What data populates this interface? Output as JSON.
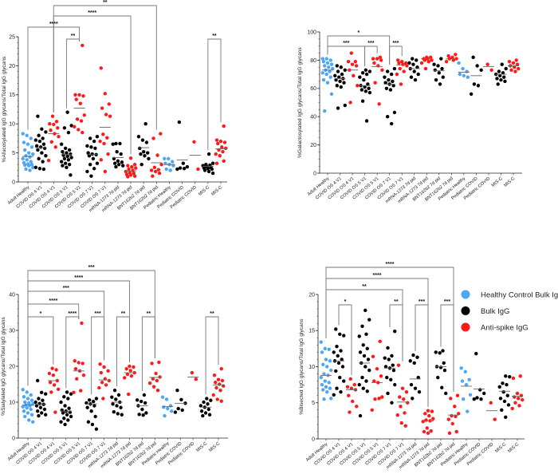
{
  "colors": {
    "healthy": "#4ea6f7",
    "bulk": "#000000",
    "spike": "#ff1a1a",
    "median": "#666666",
    "bracket": "#777777"
  },
  "categories": [
    "Adult Healthy",
    "COVID OS 4 V1",
    "COVID OS 4 V1",
    "COVID OS 5 V1",
    "COVID OS 5 V1",
    "COVID OS 7 V1",
    "COVID OS 7 V1",
    "mRNA-1273 7d pid",
    "mRNA-1273 7d pid",
    "BNT162b2 7d pid",
    "BNT162b2 7d pid",
    "Pediatric Healthy",
    "Pediatric COVID",
    "Pediatric COVID",
    "MIS-C",
    "MIS-C"
  ],
  "group_types": [
    "healthy",
    "bulk",
    "spike",
    "bulk",
    "spike",
    "bulk",
    "spike",
    "bulk",
    "spike",
    "bulk",
    "spike",
    "healthy",
    "bulk",
    "spike",
    "bulk",
    "spike"
  ],
  "legend": [
    {
      "label": "Healthy Control Bulk IgG",
      "type": "healthy"
    },
    {
      "label": "Bulk IgG",
      "type": "bulk"
    },
    {
      "label": "Anti-spike IgG",
      "type": "spike"
    }
  ],
  "chart_data": [
    {
      "type": "scatter",
      "ylabel": "%Afucosylated IgG glycans/Total IgG glycans",
      "ylim": [
        0,
        25
      ],
      "yticks": [
        "0",
        "5",
        "10",
        "15",
        "20",
        "25"
      ],
      "ytick_values": [
        0,
        5,
        10,
        15,
        20,
        25
      ],
      "minor_step": 1,
      "medians": [
        4.4,
        5.9,
        8.3,
        4.7,
        12.7,
        4.7,
        9.4,
        4.2,
        1.9,
        5.9,
        3.3,
        3.0,
        3.8,
        4.6,
        2.7,
        5.7
      ],
      "points": [
        [
          8.3,
          8,
          7.5,
          6.8,
          6.5,
          6,
          5.5,
          5,
          4.8,
          4.5,
          4.3,
          4,
          3.8,
          3.5,
          3.3,
          3.1,
          3,
          2.9,
          2.8,
          2.5,
          2.2,
          2
        ],
        [
          11.3,
          9.1,
          8.6,
          8,
          7.5,
          7.2,
          7,
          6.5,
          6.2,
          6,
          5.8,
          5.5,
          5,
          4.5,
          4,
          3.5,
          2.5,
          2.3,
          2.2
        ],
        [
          11.3,
          10.4,
          10,
          9.9,
          9.3,
          8.9,
          8.3,
          7.8,
          6.9,
          6,
          3.7
        ],
        [
          12,
          9.7,
          9.3,
          8.5,
          6.5,
          5.8,
          5.5,
          5.2,
          5,
          4.8,
          4.6,
          4.4,
          4.2,
          4,
          3.8,
          3.5,
          3.2,
          3,
          2.8,
          2.5,
          1.2
        ],
        [
          23.5,
          15,
          15,
          14.8,
          14.2,
          13.5,
          11.5,
          10.8,
          10.5,
          9.5,
          9,
          8.5
        ],
        [
          7.8,
          7.5,
          7,
          6.2,
          6,
          5.8,
          5,
          4.8,
          4.7,
          4.5,
          4,
          3.2,
          3,
          2.3,
          1.8,
          1
        ],
        [
          19.6,
          15.2,
          13.4,
          12.7,
          11.6,
          11.3,
          8.2,
          7.6,
          7,
          6.6,
          4.8,
          3.8,
          1.8
        ],
        [
          6.6,
          6.6,
          6.5,
          5.2,
          4.8,
          4,
          3.6,
          3.4,
          3.2,
          3,
          2.8,
          2.6
        ],
        [
          4.1,
          3,
          2.8,
          2.6,
          2.4,
          2.2,
          2,
          1.8,
          1.6,
          1.5,
          1.3,
          1.2,
          1,
          0.9
        ],
        [
          10,
          7.8,
          7.2,
          6.8,
          5.8,
          5.2,
          5,
          4.8,
          4.5,
          4,
          3
        ],
        [
          8.3,
          7.5,
          4.6,
          3,
          2.5,
          2.1,
          2,
          1.8,
          1.5,
          1
        ],
        [
          4,
          4,
          3.5,
          3.2,
          3,
          2.8,
          2.2,
          2
        ],
        [
          10.3,
          3.2,
          2.6,
          2.4,
          2.3,
          2.2
        ],
        [
          6.9,
          2.2
        ],
        [
          4.8,
          3.2,
          3,
          2.9,
          2.8,
          2.6,
          2.5,
          2.4,
          2.3,
          2.2,
          2,
          1.8,
          1.5
        ],
        [
          9.6,
          7.2,
          7,
          6.8,
          6.6,
          6,
          5.8,
          5.5,
          5.2,
          4.8,
          4.5,
          3.6,
          3.2
        ]
      ],
      "brackets": [
        {
          "from": 4,
          "to": 5,
          "label": "**",
          "tier": 0
        },
        {
          "from": 15,
          "to": 16,
          "label": "**",
          "tier": 0
        },
        {
          "from": 1,
          "to": 5,
          "label": "****",
          "tier": 1
        },
        {
          "from": 3,
          "to": 9,
          "label": "****",
          "tier": 2
        },
        {
          "from": 3,
          "to": 11,
          "label": "**",
          "tier": 3
        }
      ]
    },
    {
      "type": "scatter",
      "ylabel": "%Galactosylated IgG glycans/Total IgG glycans",
      "ylim": [
        0,
        100
      ],
      "yticks": [
        "0",
        "20",
        "40",
        "60",
        "80",
        "100"
      ],
      "ytick_values": [
        0,
        20,
        40,
        60,
        80,
        100
      ],
      "minor_step": 5,
      "medians": [
        73,
        67,
        73,
        62,
        75.5,
        63,
        76.5,
        74,
        81,
        72.5,
        81,
        71.5,
        69,
        75.5,
        70,
        76
      ],
      "points": [
        [
          81,
          81,
          80,
          79,
          78,
          77,
          76,
          75,
          74,
          73,
          72,
          71,
          70,
          68,
          66,
          64,
          56,
          44
        ],
        [
          76,
          75,
          73,
          72,
          70,
          69,
          68,
          67,
          66,
          65,
          64,
          62,
          61,
          48,
          46
        ],
        [
          85,
          79,
          79,
          77,
          76,
          73,
          69,
          62,
          50
        ],
        [
          73,
          72,
          71,
          70,
          68,
          66,
          63,
          62,
          61,
          60,
          59,
          58,
          57,
          51,
          37
        ],
        [
          82,
          81,
          81,
          80,
          78,
          76,
          73,
          64,
          49
        ],
        [
          74,
          72,
          70,
          68,
          66,
          65,
          64,
          63,
          62,
          60,
          59,
          43,
          40,
          35
        ],
        [
          80,
          79,
          78,
          78,
          77,
          76,
          74,
          72,
          70,
          63
        ],
        [
          81,
          80,
          78,
          77,
          75,
          74,
          72,
          70,
          68,
          66
        ],
        [
          82,
          82,
          81,
          81,
          80,
          80,
          79,
          78,
          74
        ],
        [
          81,
          77,
          76,
          74,
          73,
          71,
          68,
          66,
          63
        ],
        [
          84,
          83,
          82,
          81,
          81,
          80,
          79
        ],
        [
          78,
          74,
          72,
          70,
          69,
          68
        ],
        [
          82,
          76,
          73,
          63,
          62,
          56
        ],
        [
          77,
          73
        ],
        [
          77,
          74,
          72,
          71,
          70,
          69,
          68,
          67,
          66,
          65,
          63
        ],
        [
          80,
          79,
          78,
          77,
          76,
          75,
          74,
          73,
          72
        ]
      ],
      "brackets": [
        {
          "from": 1,
          "to": 4,
          "label": "***",
          "tier": 0
        },
        {
          "from": 4,
          "to": 5,
          "label": "***",
          "tier": 0
        },
        {
          "from": 6,
          "to": 7,
          "label": "***",
          "tier": 0
        },
        {
          "from": 1,
          "to": 6,
          "label": "*",
          "tier": 1
        }
      ]
    },
    {
      "type": "scatter",
      "ylabel": "%Sialylated IgG glycans/Total IgG glycans",
      "ylim": [
        0,
        40
      ],
      "yticks": [
        "0",
        "10",
        "20",
        "30",
        "40"
      ],
      "ytick_values": [
        0,
        10,
        20,
        30,
        40
      ],
      "minor_step": 2,
      "medians": [
        9.2,
        9.4,
        16,
        7.5,
        18.7,
        9.5,
        16.2,
        10,
        18.2,
        9,
        16.9,
        8.8,
        9.7,
        17,
        8.6,
        14.8
      ],
      "points": [
        [
          13.5,
          12.8,
          12,
          11.5,
          11,
          10.5,
          10,
          9.8,
          9.5,
          9.2,
          9,
          8.7,
          8.4,
          8,
          7.5,
          7,
          6.5,
          6,
          5,
          4.5
        ],
        [
          16,
          12.7,
          12.3,
          11,
          10.5,
          10,
          9.6,
          9.4,
          9,
          8.5,
          8,
          7.5,
          7,
          6.5,
          6.2
        ],
        [
          19.4,
          19,
          18,
          17.5,
          16,
          15.5,
          14.8,
          13.6,
          12.8,
          7.2
        ],
        [
          12.8,
          12.3,
          11.5,
          11,
          10,
          9,
          8.3,
          7.8,
          7.5,
          7.2,
          7,
          6.5,
          6,
          5.5,
          5,
          4.5,
          3.8
        ],
        [
          32,
          21.5,
          21,
          20.8,
          19.3,
          18.7,
          17.5,
          16.5,
          13.2,
          12.7
        ],
        [
          11,
          10.6,
          10.2,
          9.8,
          9.5,
          9,
          8.5,
          7.5,
          6,
          4.5,
          3.8,
          2.5
        ],
        [
          20.6,
          19.8,
          18.7,
          18.2,
          16.5,
          16,
          15.5,
          14.8,
          14,
          11
        ],
        [
          13.3,
          12,
          11.4,
          10.8,
          10,
          9.5,
          9,
          8.5,
          7.3,
          6.8,
          6.5
        ],
        [
          20,
          19.8,
          19.3,
          18.8,
          18.2,
          17.8,
          17.3,
          16.8,
          12.2
        ],
        [
          12,
          10.6,
          10.2,
          9.8,
          9,
          8,
          7,
          6.6,
          6.4
        ],
        [
          21.1,
          20.8,
          18,
          17,
          16.5,
          16,
          15.3,
          14.3,
          13.3
        ],
        [
          11.4,
          10.8,
          9,
          8.6,
          8.2,
          7.5,
          6.2
        ],
        [
          13.3,
          10.7,
          9.7,
          8.2,
          7.8,
          7.2
        ],
        [
          18.2,
          16.4
        ],
        [
          11,
          10.5,
          10,
          9.5,
          9,
          8.6,
          8,
          7.5,
          7,
          6.5,
          6.2
        ],
        [
          19.3,
          17.5,
          16.3,
          16,
          15.5,
          15,
          14.5,
          14,
          13.3,
          12,
          10.8,
          10.3
        ]
      ],
      "brackets": [
        {
          "from": 1,
          "to": 3,
          "label": "*",
          "tier": 0
        },
        {
          "from": 4,
          "to": 5,
          "label": "****",
          "tier": 0
        },
        {
          "from": 6,
          "to": 7,
          "label": "***",
          "tier": 0
        },
        {
          "from": 8,
          "to": 9,
          "label": "**",
          "tier": 0
        },
        {
          "from": 10,
          "to": 11,
          "label": "**",
          "tier": 0
        },
        {
          "from": 15,
          "to": 16,
          "label": "**",
          "tier": 0
        },
        {
          "from": 1,
          "to": 5,
          "label": "****",
          "tier": 1
        },
        {
          "from": 1,
          "to": 7,
          "label": "***",
          "tier": 2
        },
        {
          "from": 1,
          "to": 9,
          "label": "****",
          "tier": 3
        },
        {
          "from": 1,
          "to": 11,
          "label": "***",
          "tier": 4
        }
      ]
    },
    {
      "type": "scatter",
      "ylabel": "%Bisected IgG glycans/Total IgG glycans",
      "ylim": [
        0,
        20
      ],
      "yticks": [
        "0",
        "5",
        "10",
        "15",
        "20"
      ],
      "ytick_values": [
        0,
        5,
        10,
        15,
        20
      ],
      "minor_step": 1,
      "medians": [
        8.8,
        10.8,
        6.8,
        10.5,
        7.8,
        9.8,
        5.1,
        8.3,
        2.5,
        10,
        3.3,
        7.3,
        6.9,
        3.9,
        6.6,
        5.9
      ],
      "points": [
        [
          13.4,
          12.5,
          12.4,
          12,
          11,
          10.8,
          10.3,
          10,
          9.5,
          9,
          8.8,
          8.5,
          8,
          7.8,
          7.5,
          7.2,
          7,
          6.8,
          6.5,
          5.6,
          5.5
        ],
        [
          15.2,
          14.5,
          14.3,
          12.8,
          12.2,
          12,
          11.5,
          11,
          10.8,
          10.5,
          10,
          9.4,
          8.5,
          8,
          7,
          6.5,
          6.1
        ],
        [
          8.3,
          7.5,
          7.2,
          7,
          6.8,
          6,
          5.2,
          4.5,
          3.7
        ],
        [
          17.8,
          16.5,
          15.6,
          14.5,
          14.2,
          13,
          12.5,
          12,
          11.5,
          11,
          10.5,
          10,
          9.5,
          8.5,
          8,
          7.5,
          7,
          6.6,
          3.2
        ],
        [
          13.5,
          11.4,
          9.7,
          8.7,
          8,
          7.8,
          5.8,
          5.5,
          5.6,
          4
        ],
        [
          14.9,
          12.6,
          11.5,
          11.2,
          11,
          10.2,
          10,
          9.8,
          9.5,
          8.5,
          8.2,
          7.5,
          6.3,
          5
        ],
        [
          10.2,
          7,
          6.5,
          5.8,
          5.5,
          5,
          4.5,
          3.6,
          3.3,
          2.2,
          1.8
        ],
        [
          11.6,
          11.3,
          10.8,
          10.5,
          8.5,
          7.5,
          7,
          6.5,
          5.6
        ],
        [
          3.9,
          3.8,
          3.5,
          3.2,
          2.8,
          2.6,
          2.5,
          2.4,
          1.5,
          1.1,
          1,
          0.8
        ],
        [
          12.2,
          12,
          11.9,
          10.5,
          10,
          9.9,
          9.5,
          8.5,
          7.1,
          6.3
        ],
        [
          6,
          5.6,
          4.5,
          3.5,
          3.2,
          3.1,
          2.7,
          2.1,
          1,
          0.8
        ],
        [
          9.8,
          9.3,
          8.2,
          8,
          7.5,
          6.1,
          5.5,
          3.8
        ],
        [
          11.8,
          6.8,
          6.3,
          5.7,
          5.5,
          5.5
        ],
        [
          5,
          2.7
        ],
        [
          8.7,
          8.6,
          7.7,
          7.5,
          7.2,
          6.5,
          6,
          5.6,
          5.2,
          4.7,
          4,
          3
        ],
        [
          8.7,
          8.4,
          6.3,
          6,
          5.8,
          5.6,
          5.4,
          5,
          4.6,
          4.2
        ]
      ],
      "brackets": [
        {
          "from": 2,
          "to": 3,
          "label": "*",
          "tier": 0
        },
        {
          "from": 6,
          "to": 7,
          "label": "**",
          "tier": 0
        },
        {
          "from": 8,
          "to": 9,
          "label": "***",
          "tier": 0
        },
        {
          "from": 10,
          "to": 11,
          "label": "***",
          "tier": 0
        },
        {
          "from": 1,
          "to": 7,
          "label": "**",
          "tier": 1
        },
        {
          "from": 1,
          "to": 9,
          "label": "****",
          "tier": 2
        },
        {
          "from": 1,
          "to": 11,
          "label": "****",
          "tier": 3
        }
      ]
    }
  ]
}
